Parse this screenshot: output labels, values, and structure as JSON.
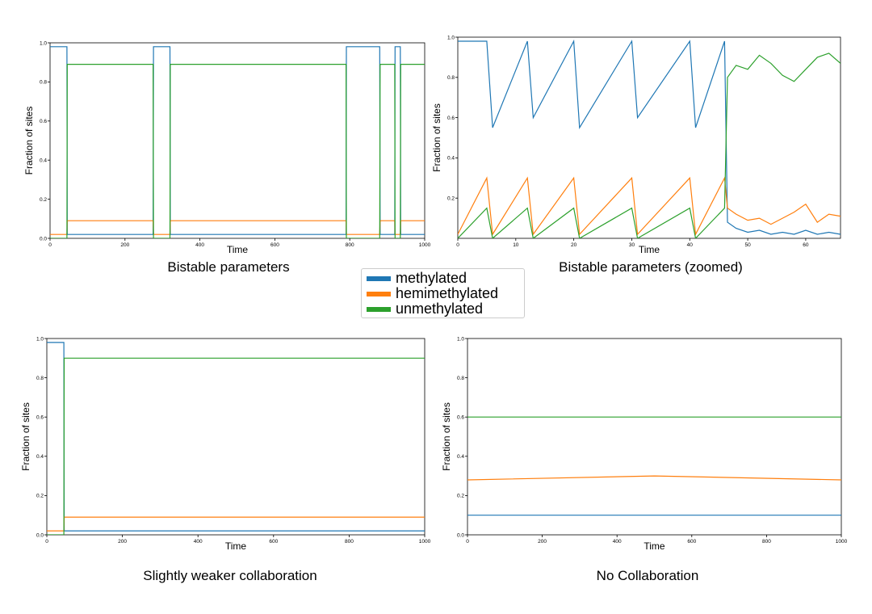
{
  "legend": {
    "entries": [
      {
        "label": "methylated",
        "color": "#1f77b4"
      },
      {
        "label": "hemimethylated",
        "color": "#ff7f0e"
      },
      {
        "label": "unmethylated",
        "color": "#2ca02c"
      }
    ]
  },
  "chart_data": [
    {
      "type": "line",
      "caption": "Bistable parameters",
      "xlabel": "Time",
      "ylabel": "Fraction of sites",
      "xlim": [
        0,
        1000
      ],
      "ylim": [
        0,
        1.0
      ],
      "xticks": [
        "0",
        "200",
        "400",
        "600",
        "800",
        "1000"
      ],
      "yticks": [
        "0.0",
        "0.2",
        "0.4",
        "0.6",
        "0.8",
        "1.0"
      ],
      "series": [
        {
          "name": "methylated",
          "color": "#1f77b4",
          "x": [
            0,
            45,
            46,
            275,
            276,
            320,
            321,
            790,
            791,
            880,
            881,
            920,
            921,
            935,
            936,
            1000
          ],
          "y": [
            0.98,
            0.98,
            0.02,
            0.02,
            0.98,
            0.98,
            0.02,
            0.02,
            0.98,
            0.98,
            0.02,
            0.02,
            0.98,
            0.98,
            0.02,
            0.02
          ]
        },
        {
          "name": "hemimethylated",
          "color": "#ff7f0e",
          "x": [
            0,
            45,
            46,
            275,
            276,
            320,
            321,
            790,
            791,
            880,
            881,
            920,
            921,
            935,
            936,
            1000
          ],
          "y": [
            0.02,
            0.02,
            0.09,
            0.09,
            0.02,
            0.02,
            0.09,
            0.09,
            0.02,
            0.02,
            0.09,
            0.09,
            0.02,
            0.02,
            0.09,
            0.09
          ]
        },
        {
          "name": "unmethylated",
          "color": "#2ca02c",
          "x": [
            0,
            45,
            46,
            275,
            276,
            320,
            321,
            790,
            791,
            880,
            881,
            920,
            921,
            935,
            936,
            1000
          ],
          "y": [
            0.0,
            0.0,
            0.89,
            0.89,
            0.0,
            0.0,
            0.89,
            0.89,
            0.0,
            0.0,
            0.89,
            0.89,
            0.0,
            0.0,
            0.89,
            0.89
          ]
        }
      ]
    },
    {
      "type": "line",
      "caption": "Bistable parameters (zoomed)",
      "xlabel": "Time",
      "ylabel": "Fraction of sites",
      "xlim": [
        0,
        66
      ],
      "ylim": [
        0,
        1.0
      ],
      "xticks": [
        "0",
        "10",
        "20",
        "30",
        "40",
        "50",
        "60"
      ],
      "yticks": [
        "0.2",
        "0.4",
        "0.6",
        "0.8",
        "1.0"
      ],
      "series": [
        {
          "name": "methylated",
          "color": "#1f77b4",
          "x": [
            0,
            5,
            6,
            12,
            13,
            20,
            21,
            30,
            31,
            40,
            41,
            46,
            46.5,
            48,
            50,
            52,
            54,
            56,
            58,
            60,
            62,
            64,
            66
          ],
          "y": [
            0.98,
            0.98,
            0.55,
            0.98,
            0.6,
            0.98,
            0.55,
            0.98,
            0.6,
            0.98,
            0.55,
            0.98,
            0.08,
            0.05,
            0.03,
            0.04,
            0.02,
            0.03,
            0.02,
            0.04,
            0.02,
            0.03,
            0.02
          ]
        },
        {
          "name": "hemimethylated",
          "color": "#ff7f0e",
          "x": [
            0,
            5,
            6,
            12,
            13,
            20,
            21,
            30,
            31,
            40,
            41,
            46,
            46.5,
            48,
            50,
            52,
            54,
            56,
            58,
            60,
            62,
            64,
            66
          ],
          "y": [
            0.02,
            0.3,
            0.02,
            0.3,
            0.02,
            0.3,
            0.02,
            0.3,
            0.02,
            0.3,
            0.02,
            0.3,
            0.15,
            0.12,
            0.09,
            0.1,
            0.07,
            0.1,
            0.13,
            0.17,
            0.08,
            0.12,
            0.11
          ]
        },
        {
          "name": "unmethylated",
          "color": "#2ca02c",
          "x": [
            0,
            5,
            6,
            12,
            13,
            20,
            21,
            30,
            31,
            40,
            41,
            46,
            46.5,
            48,
            50,
            52,
            54,
            56,
            58,
            60,
            62,
            64,
            66
          ],
          "y": [
            0.0,
            0.15,
            0.0,
            0.15,
            0.0,
            0.15,
            0.0,
            0.15,
            0.0,
            0.15,
            0.0,
            0.15,
            0.8,
            0.86,
            0.84,
            0.91,
            0.87,
            0.81,
            0.78,
            0.84,
            0.9,
            0.92,
            0.87
          ]
        }
      ]
    },
    {
      "type": "line",
      "caption": "Slightly weaker collaboration",
      "xlabel": "Time",
      "ylabel": "Fraction of sites",
      "xlim": [
        0,
        1000
      ],
      "ylim": [
        0,
        1.0
      ],
      "xticks": [
        "0",
        "200",
        "400",
        "600",
        "800",
        "1000"
      ],
      "yticks": [
        "0.0",
        "0.2",
        "0.4",
        "0.6",
        "0.8",
        "1.0"
      ],
      "series": [
        {
          "name": "methylated",
          "color": "#1f77b4",
          "x": [
            0,
            45,
            46,
            1000
          ],
          "y": [
            0.98,
            0.98,
            0.02,
            0.02
          ]
        },
        {
          "name": "hemimethylated",
          "color": "#ff7f0e",
          "x": [
            0,
            45,
            46,
            1000
          ],
          "y": [
            0.02,
            0.02,
            0.09,
            0.09
          ]
        },
        {
          "name": "unmethylated",
          "color": "#2ca02c",
          "x": [
            0,
            45,
            46,
            1000
          ],
          "y": [
            0.0,
            0.0,
            0.9,
            0.9
          ]
        }
      ]
    },
    {
      "type": "line",
      "caption": "No Collaboration",
      "xlabel": "Time",
      "ylabel": "Fraction of sites",
      "xlim": [
        0,
        1000
      ],
      "ylim": [
        0,
        1.0
      ],
      "xticks": [
        "0",
        "200",
        "400",
        "600",
        "800",
        "1000"
      ],
      "yticks": [
        "0.0",
        "0.2",
        "0.4",
        "0.6",
        "0.8",
        "1.0"
      ],
      "series": [
        {
          "name": "methylated",
          "color": "#1f77b4",
          "x": [
            0,
            500,
            1000
          ],
          "y": [
            0.1,
            0.1,
            0.1
          ]
        },
        {
          "name": "hemimethylated",
          "color": "#ff7f0e",
          "x": [
            0,
            500,
            1000
          ],
          "y": [
            0.28,
            0.3,
            0.28
          ]
        },
        {
          "name": "unmethylated",
          "color": "#2ca02c",
          "x": [
            0,
            500,
            1000
          ],
          "y": [
            0.6,
            0.6,
            0.6
          ]
        }
      ]
    }
  ]
}
